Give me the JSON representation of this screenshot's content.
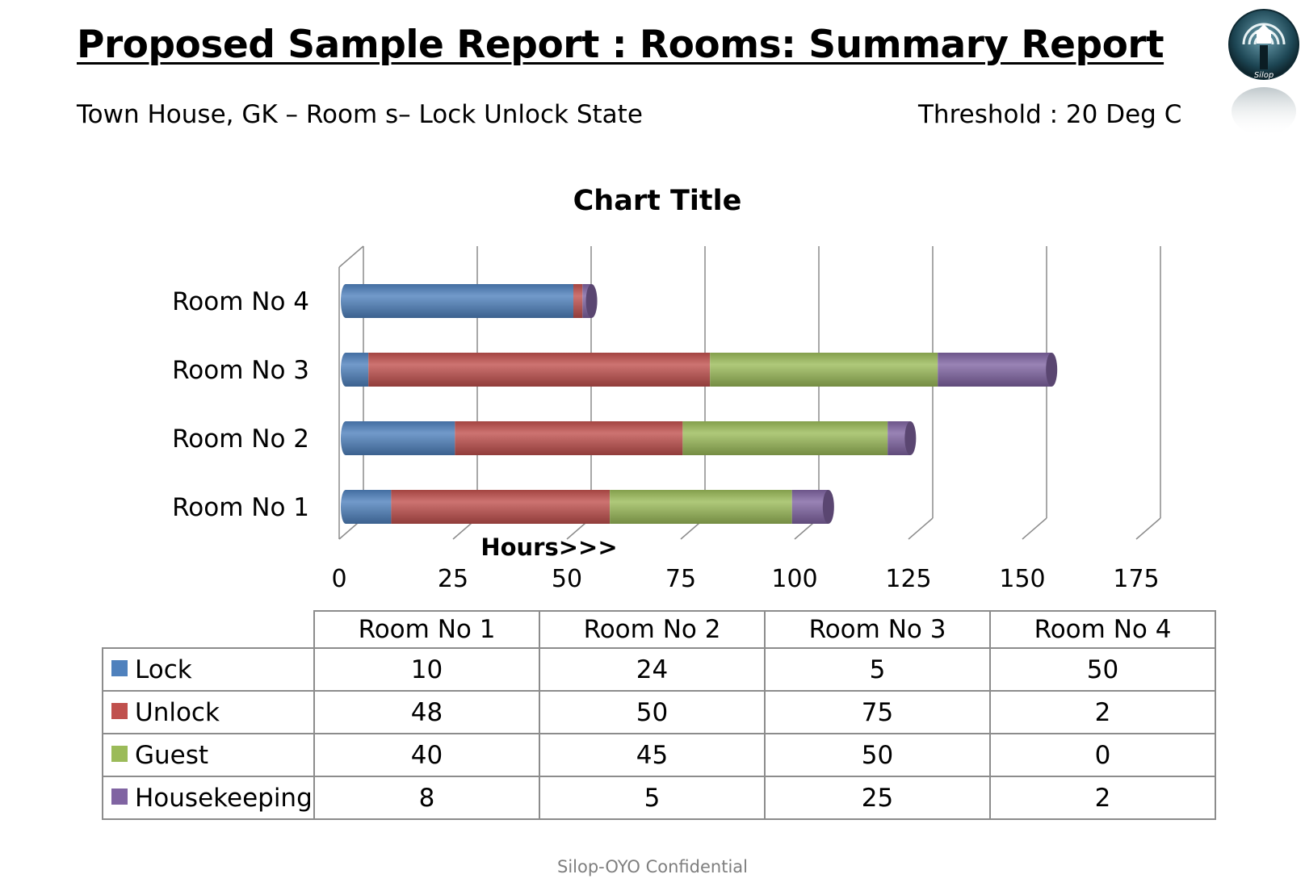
{
  "title": "Proposed Sample Report : Rooms: Summary Report",
  "subtitle_left": "Town House, GK – Room s– Lock Unlock State",
  "subtitle_right": "Threshold : 20 Deg C",
  "footer": "Silop-OYO Confidential",
  "logo": {
    "icon": "silop-house-signal-logo",
    "text": "Silop"
  },
  "chart_data": {
    "type": "bar",
    "orientation": "horizontal",
    "stacked": true,
    "title": "Chart Title",
    "xlabel": "Hours>>>",
    "ylabel": "",
    "categories": [
      "Room No 1",
      "Room No 2",
      "Room No 3",
      "Room No 4"
    ],
    "series": [
      {
        "name": "Lock",
        "color": "#4f81bd",
        "values": [
          10,
          24,
          5,
          50
        ]
      },
      {
        "name": "Unlock",
        "color": "#c0504d",
        "values": [
          48,
          50,
          75,
          2
        ]
      },
      {
        "name": "Guest",
        "color": "#9bbb59",
        "values": [
          40,
          45,
          50,
          0
        ]
      },
      {
        "name": "Housekeeping",
        "color": "#8064a2",
        "values": [
          8,
          5,
          25,
          2
        ]
      }
    ],
    "xlim": [
      0,
      175
    ],
    "xticks": [
      0,
      25,
      50,
      75,
      100,
      125,
      150,
      175
    ],
    "grid": true,
    "legend": "data-table-below"
  }
}
